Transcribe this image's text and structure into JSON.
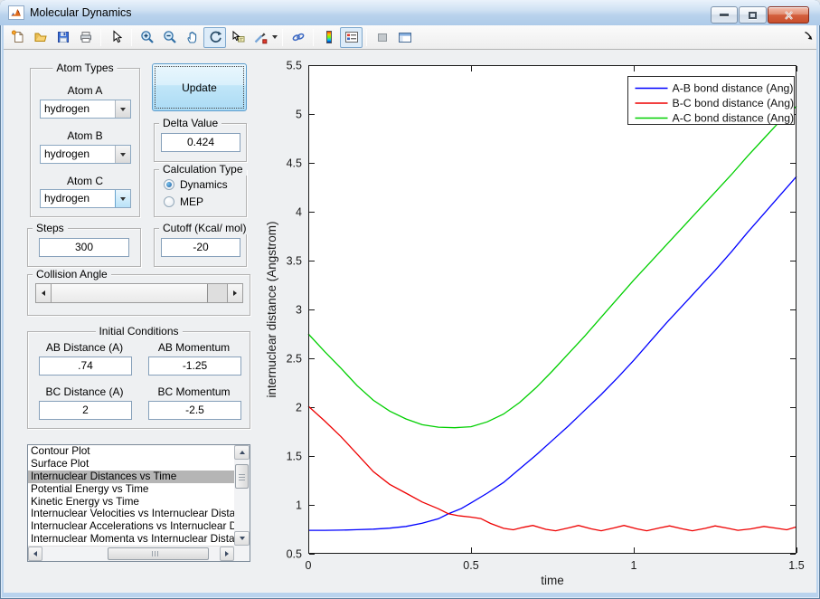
{
  "window": {
    "title": "Molecular Dynamics",
    "controls": {
      "minimize": "minimize",
      "maximize": "maximize",
      "close": "close"
    }
  },
  "toolbar": {
    "icons": [
      "new-figure",
      "open-file",
      "save-figure",
      "print-figure",
      "edit-plot",
      "zoom-in",
      "zoom-out",
      "pan",
      "rotate-3d",
      "data-cursor",
      "brush-data",
      "brush-dropdown",
      "link-plot",
      "insert-colorbar",
      "insert-legend",
      "hide-plot-tools",
      "show-plot-tools-dock",
      "dock-figure"
    ],
    "active_icons": [
      "rotate-3d",
      "insert-legend"
    ]
  },
  "panels": {
    "atom_types": {
      "title": "Atom Types",
      "fields": [
        {
          "label": "Atom A",
          "value": "hydrogen"
        },
        {
          "label": "Atom B",
          "value": "hydrogen"
        },
        {
          "label": "Atom C",
          "value": "hydrogen"
        }
      ]
    },
    "update_label": "Update",
    "delta": {
      "title": "Delta Value",
      "value": "0.424"
    },
    "calculation_type": {
      "title": "Calculation Type",
      "options": [
        {
          "label": "Dynamics",
          "selected": true
        },
        {
          "label": "MEP",
          "selected": false
        }
      ]
    },
    "steps": {
      "title": "Steps",
      "value": "300"
    },
    "cutoff": {
      "title": "Cutoff (Kcal/ mol)",
      "value": "-20"
    },
    "collision_angle": {
      "title": "Collision Angle"
    },
    "initial_conditions": {
      "title": "Initial Conditions",
      "fields": [
        {
          "label": "AB Distance (A)",
          "value": ".74"
        },
        {
          "label": "AB Momentum",
          "value": "-1.25"
        },
        {
          "label": "BC Distance (A)",
          "value": "2"
        },
        {
          "label": "BC Momentum",
          "value": "-2.5"
        }
      ]
    },
    "plot_list": {
      "selected_index": 2,
      "items": [
        "Contour Plot",
        "Surface Plot",
        "Internuclear Distances vs Time",
        "Potential Energy vs Time",
        "Kinetic Energy vs Time",
        "Internuclear Velocities vs Internuclear Distance",
        "Internuclear Accelerations vs Internuclear Dista",
        "Internuclear Momenta vs Internuclear Distance"
      ]
    }
  },
  "ui_colors": {
    "window_border": "#b9d3ee",
    "figure_background": "#eef0f2",
    "selection_gray": "#b5b5b5",
    "focus_button_border": "#5c9ccc"
  },
  "chart_data": {
    "type": "line",
    "title": "",
    "xlabel": "time",
    "ylabel": "internuclear distance (Angstrom)",
    "xlim": [
      0,
      1.5
    ],
    "ylim": [
      0.5,
      5.5
    ],
    "grid": false,
    "legend_position": "top-right",
    "xticks": [
      {
        "v": 0,
        "l": "0"
      },
      {
        "v": 0.5,
        "l": "0.5"
      },
      {
        "v": 1,
        "l": "1"
      },
      {
        "v": 1.5,
        "l": "1.5"
      }
    ],
    "yticks": [
      {
        "v": 0.5,
        "l": "0.5"
      },
      {
        "v": 1,
        "l": "1"
      },
      {
        "v": 1.5,
        "l": "1.5"
      },
      {
        "v": 2,
        "l": "2"
      },
      {
        "v": 2.5,
        "l": "2.5"
      },
      {
        "v": 3,
        "l": "3"
      },
      {
        "v": 3.5,
        "l": "3.5"
      },
      {
        "v": 4,
        "l": "4"
      },
      {
        "v": 4.5,
        "l": "4.5"
      },
      {
        "v": 5,
        "l": "5"
      },
      {
        "v": 5.5,
        "l": "5.5"
      }
    ],
    "series": [
      {
        "id": "ab",
        "name": "A-B bond distance (Ang)",
        "color": "#0000FF",
        "points": [
          [
            0,
            0.74
          ],
          [
            0.05,
            0.74
          ],
          [
            0.1,
            0.742
          ],
          [
            0.15,
            0.746
          ],
          [
            0.2,
            0.752
          ],
          [
            0.25,
            0.762
          ],
          [
            0.3,
            0.78
          ],
          [
            0.35,
            0.812
          ],
          [
            0.4,
            0.858
          ],
          [
            0.43,
            0.908
          ],
          [
            0.47,
            0.962
          ],
          [
            0.5,
            1.02
          ],
          [
            0.55,
            1.12
          ],
          [
            0.6,
            1.23
          ],
          [
            0.65,
            1.37
          ],
          [
            0.7,
            1.51
          ],
          [
            0.75,
            1.66
          ],
          [
            0.8,
            1.81
          ],
          [
            0.85,
            1.97
          ],
          [
            0.9,
            2.13
          ],
          [
            0.95,
            2.3
          ],
          [
            1.0,
            2.48
          ],
          [
            1.05,
            2.67
          ],
          [
            1.1,
            2.86
          ],
          [
            1.15,
            3.04
          ],
          [
            1.2,
            3.22
          ],
          [
            1.25,
            3.4
          ],
          [
            1.3,
            3.59
          ],
          [
            1.35,
            3.79
          ],
          [
            1.4,
            3.98
          ],
          [
            1.45,
            4.17
          ],
          [
            1.5,
            4.36
          ]
        ]
      },
      {
        "id": "bc",
        "name": "B-C bond distance (Ang)",
        "color": "#EE0000",
        "points": [
          [
            0,
            2.01
          ],
          [
            0.05,
            1.86
          ],
          [
            0.1,
            1.7
          ],
          [
            0.15,
            1.52
          ],
          [
            0.2,
            1.34
          ],
          [
            0.25,
            1.21
          ],
          [
            0.3,
            1.12
          ],
          [
            0.35,
            1.03
          ],
          [
            0.4,
            0.96
          ],
          [
            0.43,
            0.91
          ],
          [
            0.46,
            0.89
          ],
          [
            0.5,
            0.875
          ],
          [
            0.53,
            0.86
          ],
          [
            0.56,
            0.81
          ],
          [
            0.6,
            0.76
          ],
          [
            0.63,
            0.745
          ],
          [
            0.66,
            0.77
          ],
          [
            0.69,
            0.79
          ],
          [
            0.73,
            0.75
          ],
          [
            0.76,
            0.735
          ],
          [
            0.8,
            0.765
          ],
          [
            0.83,
            0.79
          ],
          [
            0.87,
            0.755
          ],
          [
            0.9,
            0.735
          ],
          [
            0.94,
            0.765
          ],
          [
            0.97,
            0.79
          ],
          [
            1.01,
            0.755
          ],
          [
            1.04,
            0.735
          ],
          [
            1.08,
            0.765
          ],
          [
            1.11,
            0.785
          ],
          [
            1.15,
            0.755
          ],
          [
            1.18,
            0.735
          ],
          [
            1.22,
            0.76
          ],
          [
            1.25,
            0.785
          ],
          [
            1.29,
            0.76
          ],
          [
            1.32,
            0.74
          ],
          [
            1.36,
            0.755
          ],
          [
            1.4,
            0.78
          ],
          [
            1.44,
            0.76
          ],
          [
            1.47,
            0.745
          ],
          [
            1.5,
            0.775
          ]
        ]
      },
      {
        "id": "ac",
        "name": "A-C bond distance (Ang)",
        "color": "#00CF00",
        "points": [
          [
            0,
            2.75
          ],
          [
            0.05,
            2.57
          ],
          [
            0.1,
            2.4
          ],
          [
            0.15,
            2.22
          ],
          [
            0.2,
            2.07
          ],
          [
            0.25,
            1.96
          ],
          [
            0.3,
            1.88
          ],
          [
            0.35,
            1.82
          ],
          [
            0.4,
            1.795
          ],
          [
            0.45,
            1.79
          ],
          [
            0.5,
            1.8
          ],
          [
            0.55,
            1.85
          ],
          [
            0.6,
            1.93
          ],
          [
            0.65,
            2.05
          ],
          [
            0.7,
            2.2
          ],
          [
            0.75,
            2.37
          ],
          [
            0.8,
            2.55
          ],
          [
            0.85,
            2.73
          ],
          [
            0.9,
            2.92
          ],
          [
            0.95,
            3.11
          ],
          [
            1.0,
            3.3
          ],
          [
            1.05,
            3.48
          ],
          [
            1.1,
            3.66
          ],
          [
            1.15,
            3.84
          ],
          [
            1.2,
            4.02
          ],
          [
            1.25,
            4.2
          ],
          [
            1.3,
            4.38
          ],
          [
            1.35,
            4.57
          ],
          [
            1.4,
            4.75
          ],
          [
            1.45,
            4.93
          ],
          [
            1.5,
            5.08
          ]
        ]
      }
    ]
  }
}
